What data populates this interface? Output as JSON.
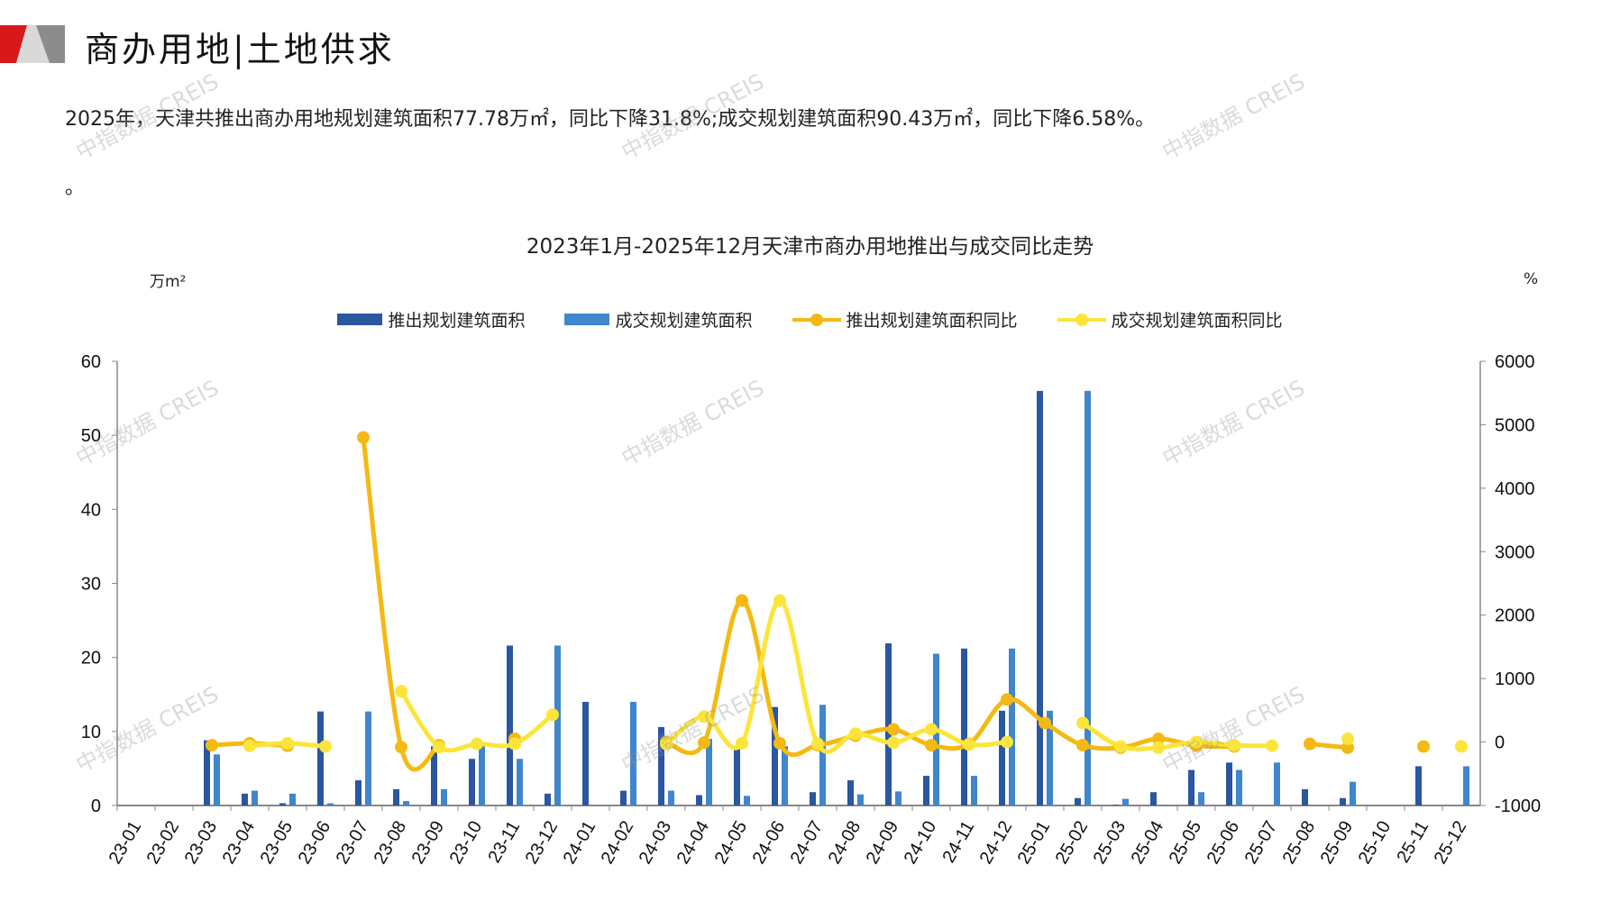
{
  "header": {
    "title": "商办用地|土地供求",
    "paragraph": "2025年，天津共推出商办用地规划建筑面积77.78万㎡，同比下降31.8%;成交规划建筑面积90.43万㎡，同比下降6.58%。",
    "trailing": "。"
  },
  "watermark": "中指数据 CREIS",
  "colors": {
    "launch_bar": "#2B56A0",
    "deal_bar": "#3F86CC",
    "launch_yoy": "#F5B914",
    "deal_yoy": "#FBE53A",
    "brand_red": "#D7191C"
  },
  "chart_data": {
    "type": "bar+line",
    "title": "2023年1月-2025年12月天津市商办用地推出与成交同比走势",
    "ylabel_left": "万m²",
    "ylabel_right": "%",
    "ylim_left": [
      0,
      60
    ],
    "yticks_left": [
      "0",
      "10",
      "20",
      "30",
      "40",
      "50",
      "60"
    ],
    "ylim_right": [
      -1000,
      6000
    ],
    "yticks_right": [
      "-1000",
      "0",
      "1000",
      "2000",
      "3000",
      "4000",
      "5000",
      "6000"
    ],
    "legend_position": "top",
    "categories": [
      "23-01",
      "23-02",
      "23-03",
      "23-04",
      "23-05",
      "23-06",
      "23-07",
      "23-08",
      "23-09",
      "23-10",
      "23-11",
      "23-12",
      "24-01",
      "24-02",
      "24-03",
      "24-04",
      "24-05",
      "24-06",
      "24-07",
      "24-08",
      "24-09",
      "24-10",
      "24-11",
      "24-12",
      "25-01",
      "25-02",
      "25-03",
      "25-04",
      "25-05",
      "25-06",
      "25-07",
      "25-08",
      "25-09",
      "25-10",
      "25-11",
      "25-12"
    ],
    "series": [
      {
        "name": "推出规划建筑面积",
        "type": "bar",
        "axis": "left",
        "values": [
          0,
          0,
          8.8,
          1.6,
          0.3,
          12.7,
          3.4,
          2.2,
          8.0,
          6.3,
          21.6,
          1.6,
          14.0,
          2.0,
          10.6,
          1.4,
          8.0,
          13.3,
          1.8,
          3.4,
          21.9,
          4.0,
          21.2,
          12.8,
          56.0,
          1.0,
          0.1,
          1.8,
          4.8,
          5.8,
          0,
          2.2,
          1.0,
          0,
          5.3,
          0
        ]
      },
      {
        "name": "成交规划建筑面积",
        "type": "bar",
        "axis": "left",
        "values": [
          0,
          0,
          6.9,
          2.0,
          1.6,
          0.3,
          12.7,
          0.6,
          2.2,
          8.0,
          6.3,
          21.6,
          0,
          14.0,
          2.0,
          9.0,
          1.3,
          8.0,
          13.6,
          1.5,
          1.9,
          20.5,
          4.0,
          21.2,
          12.8,
          56.0,
          0.9,
          0.1,
          1.8,
          4.8,
          5.8,
          0,
          3.2,
          0,
          0,
          5.3
        ]
      },
      {
        "name": "推出规划建筑面积同比",
        "type": "line",
        "axis": "right",
        "values": [
          null,
          null,
          -50,
          -20,
          -60,
          null,
          4800,
          -80,
          -50,
          null,
          50,
          null,
          null,
          null,
          0,
          -10,
          2230,
          -20,
          -50,
          100,
          200,
          -50,
          -30,
          670,
          300,
          -50,
          -90,
          50,
          -60,
          -70,
          null,
          -30,
          -90,
          null,
          -70,
          null
        ]
      },
      {
        "name": "成交规划建筑面积同比",
        "type": "line",
        "axis": "right",
        "values": [
          null,
          null,
          null,
          -60,
          -20,
          -70,
          null,
          800,
          -80,
          -30,
          -30,
          430,
          null,
          null,
          -30,
          400,
          -20,
          2230,
          -30,
          130,
          -10,
          200,
          -40,
          0,
          null,
          300,
          -70,
          -90,
          0,
          -50,
          -60,
          null,
          50,
          null,
          null,
          -70
        ]
      }
    ]
  }
}
